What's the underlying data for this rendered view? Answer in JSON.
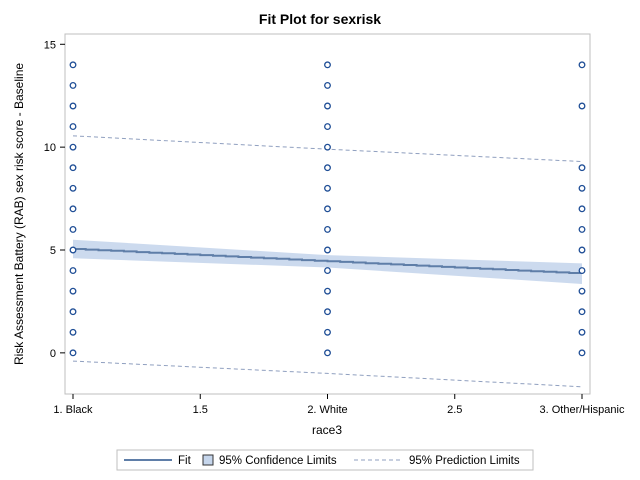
{
  "chart_data": {
    "type": "scatter",
    "title": "Fit Plot for sexrisk",
    "xlabel": "race3",
    "ylabel": "Risk Assessment Battery (RAB) sex risk score - Baseline",
    "xlim": [
      1,
      3
    ],
    "ylim": [
      -2,
      15.5
    ],
    "x_ticks": [
      1,
      1.5,
      2,
      2.5,
      3
    ],
    "x_tick_labels": [
      "1. Black",
      "1.5",
      "2. White",
      "2.5",
      "3. Other/Hispanic"
    ],
    "y_ticks": [
      0,
      5,
      10,
      15
    ],
    "y_tick_labels": [
      "0",
      "5",
      "10",
      "15"
    ],
    "grid": false,
    "legend_position": "bottom",
    "series": [
      {
        "name": "Observations",
        "kind": "points",
        "color": "#1f4e96",
        "points": [
          {
            "x": 1,
            "y": 0
          },
          {
            "x": 1,
            "y": 1
          },
          {
            "x": 1,
            "y": 2
          },
          {
            "x": 1,
            "y": 3
          },
          {
            "x": 1,
            "y": 4
          },
          {
            "x": 1,
            "y": 5
          },
          {
            "x": 1,
            "y": 6
          },
          {
            "x": 1,
            "y": 7
          },
          {
            "x": 1,
            "y": 8
          },
          {
            "x": 1,
            "y": 9
          },
          {
            "x": 1,
            "y": 10
          },
          {
            "x": 1,
            "y": 11
          },
          {
            "x": 1,
            "y": 12
          },
          {
            "x": 1,
            "y": 13
          },
          {
            "x": 1,
            "y": 14
          },
          {
            "x": 2,
            "y": 0
          },
          {
            "x": 2,
            "y": 1
          },
          {
            "x": 2,
            "y": 2
          },
          {
            "x": 2,
            "y": 3
          },
          {
            "x": 2,
            "y": 4
          },
          {
            "x": 2,
            "y": 5
          },
          {
            "x": 2,
            "y": 6
          },
          {
            "x": 2,
            "y": 7
          },
          {
            "x": 2,
            "y": 8
          },
          {
            "x": 2,
            "y": 9
          },
          {
            "x": 2,
            "y": 10
          },
          {
            "x": 2,
            "y": 11
          },
          {
            "x": 2,
            "y": 12
          },
          {
            "x": 2,
            "y": 13
          },
          {
            "x": 2,
            "y": 14
          },
          {
            "x": 3,
            "y": 0
          },
          {
            "x": 3,
            "y": 1
          },
          {
            "x": 3,
            "y": 2
          },
          {
            "x": 3,
            "y": 3
          },
          {
            "x": 3,
            "y": 4
          },
          {
            "x": 3,
            "y": 5
          },
          {
            "x": 3,
            "y": 6
          },
          {
            "x": 3,
            "y": 7
          },
          {
            "x": 3,
            "y": 8
          },
          {
            "x": 3,
            "y": 9
          },
          {
            "x": 3,
            "y": 12
          },
          {
            "x": 3,
            "y": 14
          }
        ]
      },
      {
        "name": "Fit",
        "kind": "line",
        "color": "#5f7ea8",
        "points": [
          {
            "x": 1,
            "y": 5.05
          },
          {
            "x": 2,
            "y": 4.45
          },
          {
            "x": 3,
            "y": 3.85
          }
        ]
      },
      {
        "name": "95% Confidence Limits",
        "kind": "band",
        "color": "#c6d6ec",
        "points": [
          {
            "x": 1,
            "lower": 4.6,
            "upper": 5.5
          },
          {
            "x": 2,
            "lower": 4.15,
            "upper": 4.75
          },
          {
            "x": 3,
            "lower": 3.35,
            "upper": 4.35
          }
        ]
      },
      {
        "name": "95% Prediction Limits",
        "kind": "dashed",
        "color": "#8f9fbf",
        "upper": [
          {
            "x": 1,
            "y": 10.55
          },
          {
            "x": 2,
            "y": 9.9
          },
          {
            "x": 3,
            "y": 9.3
          }
        ],
        "lower": [
          {
            "x": 1,
            "y": -0.4
          },
          {
            "x": 2,
            "y": -1.0
          },
          {
            "x": 3,
            "y": -1.65
          }
        ]
      }
    ]
  }
}
